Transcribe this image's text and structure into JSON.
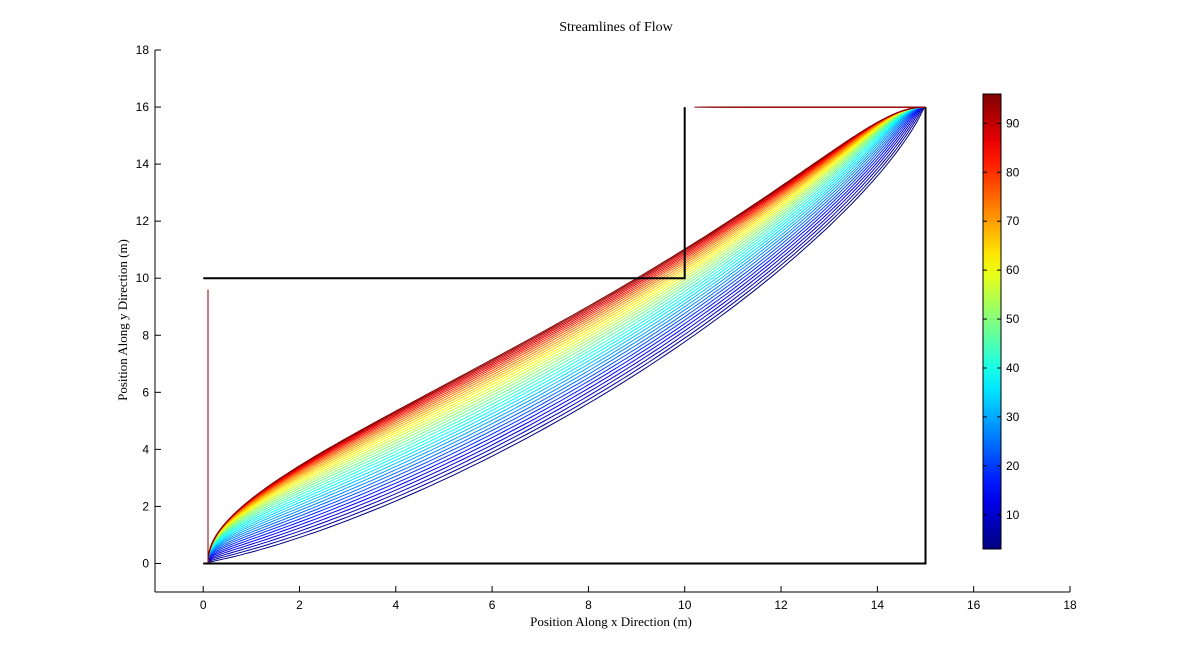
{
  "chart_data": {
    "type": "line",
    "title": "Streamlines of Flow",
    "xlabel": "Position Along x Direction (m)",
    "ylabel": "Position Along y Direction (m)",
    "xlim": [
      -1,
      18
    ],
    "ylim": [
      -1,
      18
    ],
    "xticks": [
      0,
      2,
      4,
      6,
      8,
      10,
      12,
      14,
      16,
      18
    ],
    "yticks": [
      0,
      2,
      4,
      6,
      8,
      10,
      12,
      14,
      16,
      18
    ],
    "grid": false,
    "boundary": [
      [
        0,
        10
      ],
      [
        10,
        10
      ],
      [
        10,
        16
      ]
    ],
    "boundary_outer": [
      [
        0,
        0
      ],
      [
        15,
        0
      ],
      [
        15,
        16
      ]
    ],
    "streamlines": {
      "count": 36,
      "x_start": 0.1,
      "inlet_y_min": 0.3,
      "inlet_y_max": 9.6,
      "outlet_x_min": 10.2,
      "outlet_x_max": 14.8,
      "y_end": 16,
      "corner": [
        15,
        0
      ]
    },
    "colorbar": {
      "colormap": "jet",
      "range": [
        3,
        96
      ],
      "ticks": [
        10,
        20,
        30,
        40,
        50,
        60,
        70,
        80,
        90
      ]
    }
  }
}
